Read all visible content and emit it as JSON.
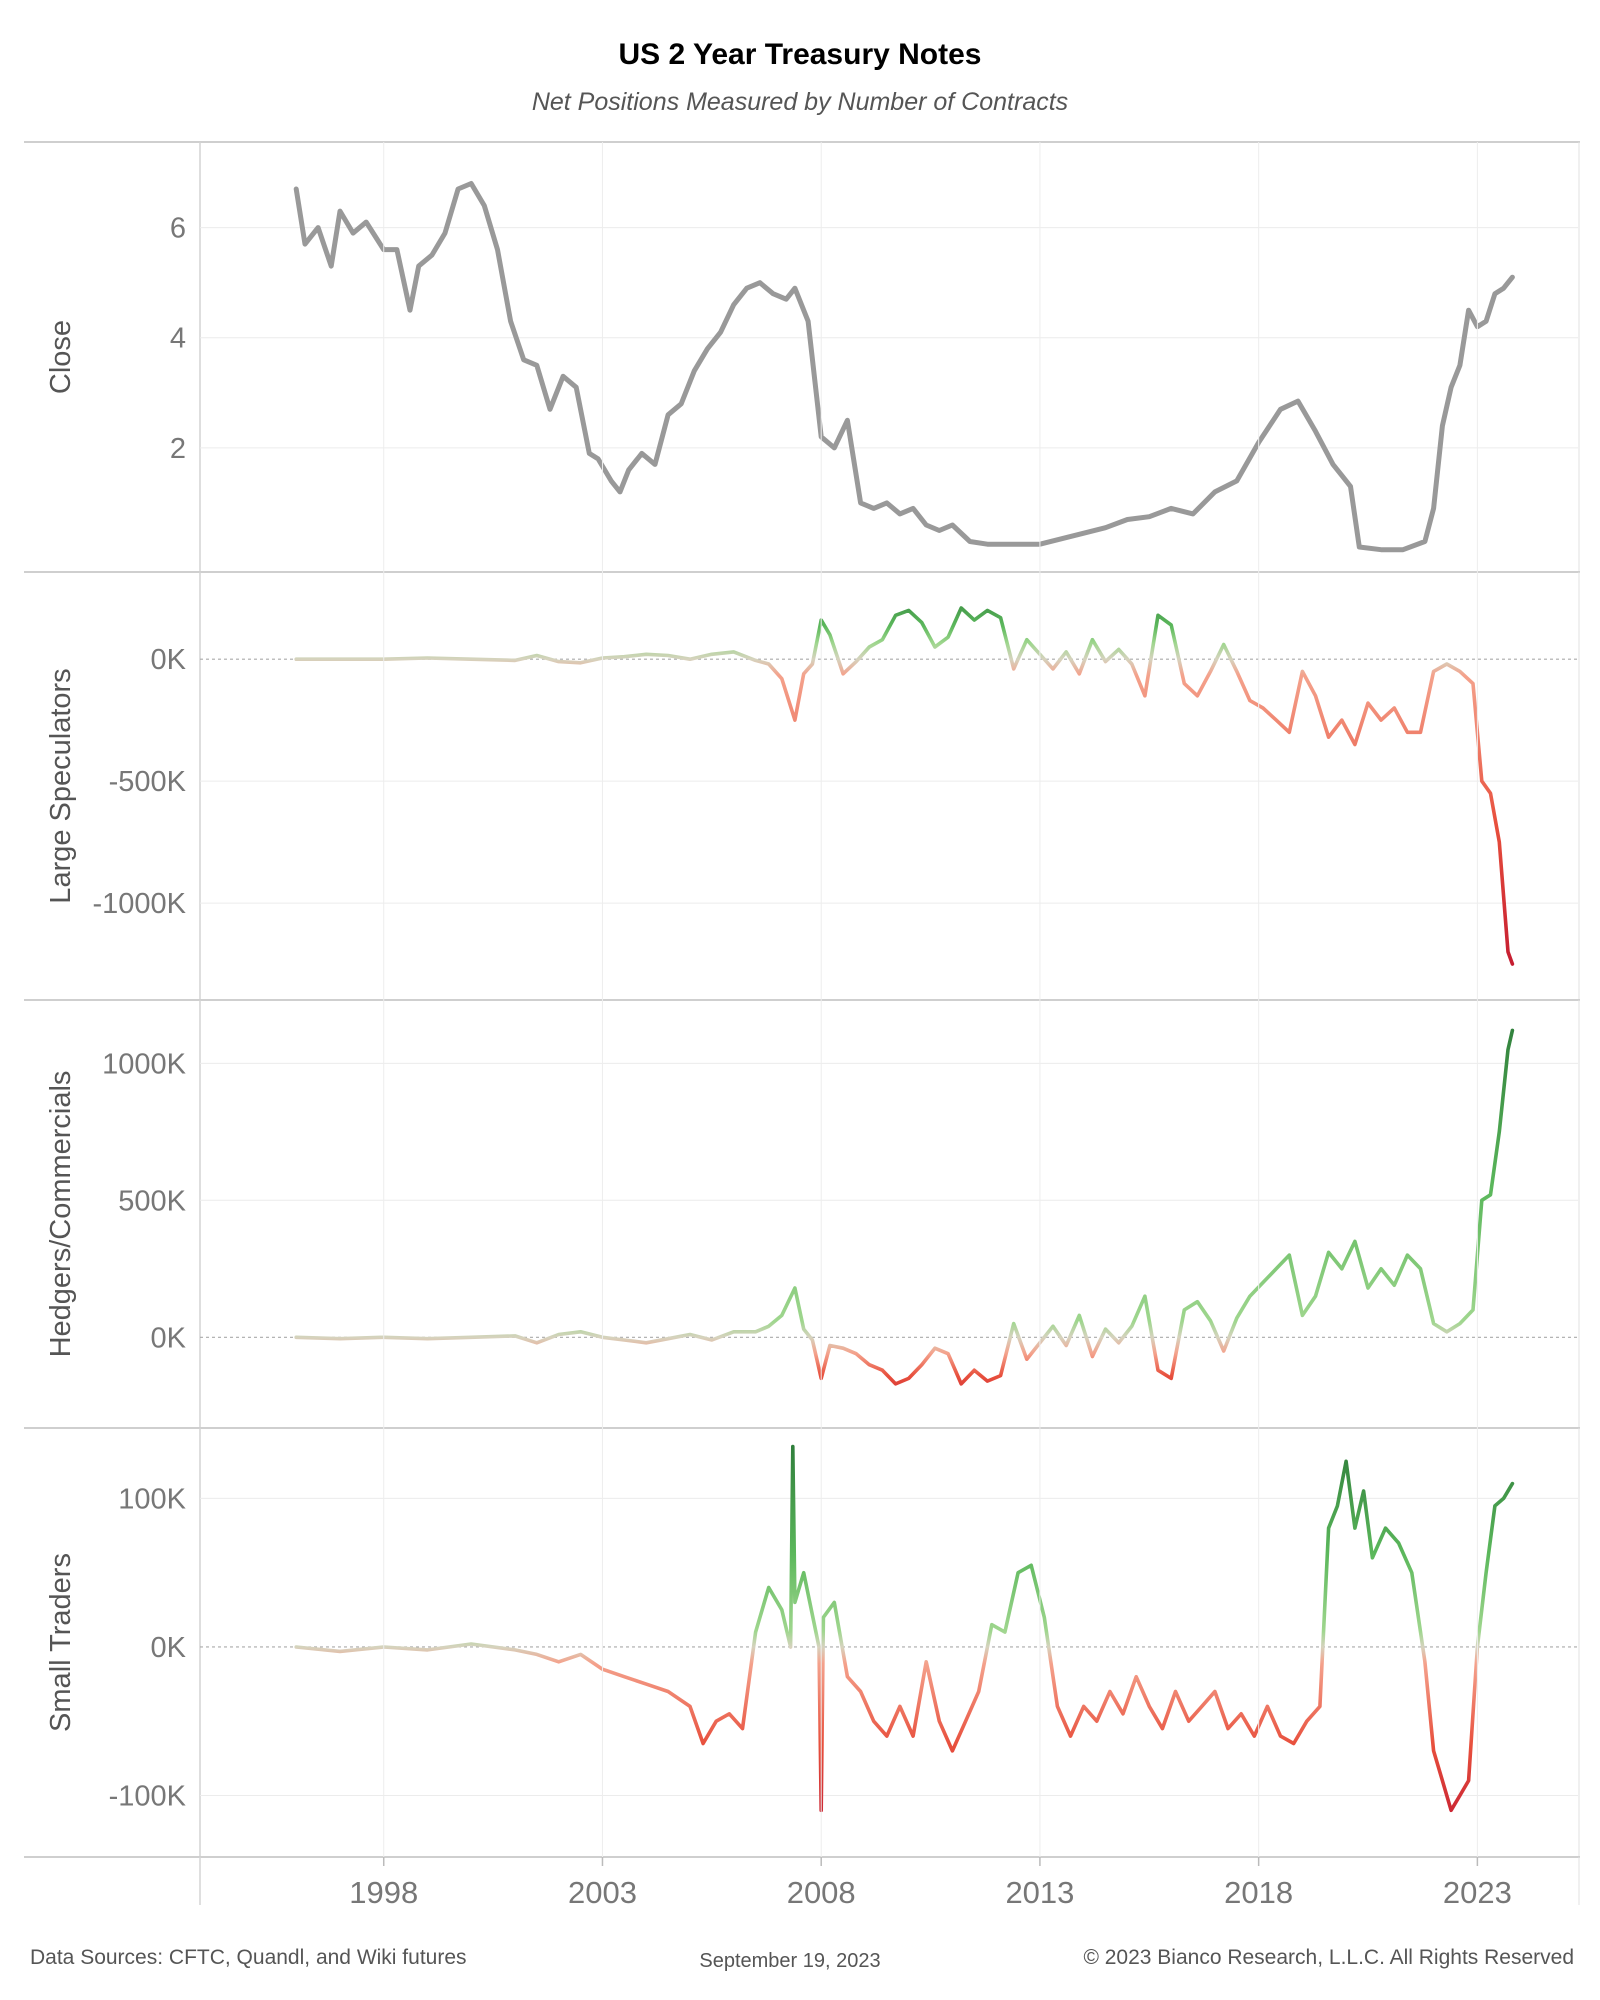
{
  "title": "US 2 Year Treasury Notes",
  "subtitle": "Net Positions Measured by Number of Contracts",
  "footer": {
    "sources": "Data Sources: CFTC, Quandl, and Wiki futures",
    "date": "September 19, 2023",
    "copyright": "© 2023 Bianco Research, L.L.C. All Rights Reserved"
  },
  "colors": {
    "close_line": "#999999",
    "positive_dark": "#2e7d3a",
    "positive_light": "#9fd68e",
    "neutral": "#d6d3be",
    "negative_light": "#f4a28c",
    "negative_dark": "#c0152f",
    "grid": "#ececec",
    "zero_line": "#aaaaaa",
    "axis_text": "#777777"
  },
  "chart_data": {
    "type": "line",
    "x_axis": {
      "label": "",
      "ticks": [
        "1998",
        "2003",
        "2008",
        "2013",
        "2018",
        "2023"
      ],
      "range": [
        1993.8,
        2025.3
      ]
    },
    "panels": [
      {
        "ylabel": "Close",
        "ylim": [
          0,
          7.3
        ],
        "ticks": [
          {
            "v": 2,
            "t": "2"
          },
          {
            "v": 4,
            "t": "4"
          },
          {
            "v": 6,
            "t": "6"
          }
        ],
        "color_mode": "gray",
        "x": [
          1996.0,
          1996.2,
          1996.5,
          1996.8,
          1997.0,
          1997.3,
          1997.6,
          1998.0,
          1998.3,
          1998.6,
          1998.8,
          1999.1,
          1999.4,
          1999.7,
          2000.0,
          2000.3,
          2000.6,
          2000.9,
          2001.2,
          2001.5,
          2001.8,
          2002.1,
          2002.4,
          2002.7,
          2002.9,
          2003.2,
          2003.4,
          2003.6,
          2003.9,
          2004.2,
          2004.5,
          2004.8,
          2005.1,
          2005.4,
          2005.7,
          2006.0,
          2006.3,
          2006.6,
          2006.9,
          2007.2,
          2007.4,
          2007.7,
          2008.0,
          2008.3,
          2008.6,
          2008.9,
          2009.2,
          2009.5,
          2009.8,
          2010.1,
          2010.4,
          2010.7,
          2011.0,
          2011.4,
          2011.8,
          2012.2,
          2012.6,
          2013.0,
          2013.5,
          2014.0,
          2014.5,
          2015.0,
          2015.5,
          2016.0,
          2016.5,
          2017.0,
          2017.5,
          2018.0,
          2018.5,
          2018.9,
          2019.3,
          2019.7,
          2019.9,
          2020.1,
          2020.3,
          2020.8,
          2021.3,
          2021.8,
          2022.0,
          2022.2,
          2022.4,
          2022.6,
          2022.8,
          2023.0,
          2023.2,
          2023.4,
          2023.6,
          2023.8
        ],
        "y": [
          6.7,
          5.7,
          6.0,
          5.3,
          6.3,
          5.9,
          6.1,
          5.6,
          5.6,
          4.5,
          5.3,
          5.5,
          5.9,
          6.7,
          6.8,
          6.4,
          5.6,
          4.3,
          3.6,
          3.5,
          2.7,
          3.3,
          3.1,
          1.9,
          1.8,
          1.4,
          1.2,
          1.6,
          1.9,
          1.7,
          2.6,
          2.8,
          3.4,
          3.8,
          4.1,
          4.6,
          4.9,
          5.0,
          4.8,
          4.7,
          4.9,
          4.3,
          2.2,
          2.0,
          2.5,
          1.0,
          0.9,
          1.0,
          0.8,
          0.9,
          0.6,
          0.5,
          0.6,
          0.3,
          0.25,
          0.25,
          0.25,
          0.25,
          0.35,
          0.45,
          0.55,
          0.7,
          0.75,
          0.9,
          0.8,
          1.2,
          1.4,
          2.1,
          2.7,
          2.85,
          2.3,
          1.7,
          1.5,
          1.3,
          0.2,
          0.15,
          0.15,
          0.3,
          0.9,
          2.4,
          3.1,
          3.5,
          4.5,
          4.2,
          4.3,
          4.8,
          4.9,
          5.1
        ]
      },
      {
        "ylabel": "Large Speculators",
        "ylim": [
          -1340,
          300
        ],
        "ticks": [
          {
            "v": 0,
            "t": "0K"
          },
          {
            "v": -500,
            "t": "-500K"
          },
          {
            "v": -1000,
            "t": "-1000K"
          }
        ],
        "color_mode": "diverging",
        "x": [
          1996.0,
          1997.0,
          1998.0,
          1999.0,
          2000.0,
          2001.0,
          2001.5,
          2002.0,
          2002.5,
          2003.0,
          2003.5,
          2004.0,
          2004.5,
          2005.0,
          2005.5,
          2006.0,
          2006.5,
          2006.8,
          2007.1,
          2007.4,
          2007.6,
          2007.8,
          2008.0,
          2008.2,
          2008.5,
          2008.8,
          2009.1,
          2009.4,
          2009.7,
          2010.0,
          2010.3,
          2010.6,
          2010.9,
          2011.2,
          2011.5,
          2011.8,
          2012.1,
          2012.4,
          2012.7,
          2013.0,
          2013.3,
          2013.6,
          2013.9,
          2014.2,
          2014.5,
          2014.8,
          2015.1,
          2015.4,
          2015.7,
          2016.0,
          2016.3,
          2016.6,
          2016.9,
          2017.2,
          2017.5,
          2017.8,
          2018.1,
          2018.4,
          2018.7,
          2019.0,
          2019.3,
          2019.6,
          2019.9,
          2020.2,
          2020.5,
          2020.8,
          2021.1,
          2021.4,
          2021.7,
          2022.0,
          2022.3,
          2022.6,
          2022.9,
          2023.1,
          2023.3,
          2023.5,
          2023.7,
          2023.8
        ],
        "y": [
          0,
          0,
          0,
          5,
          0,
          -5,
          15,
          -10,
          -15,
          5,
          10,
          20,
          15,
          0,
          20,
          30,
          -5,
          -20,
          -80,
          -250,
          -60,
          -20,
          160,
          100,
          -60,
          -10,
          50,
          80,
          180,
          200,
          150,
          50,
          90,
          210,
          160,
          200,
          170,
          -40,
          80,
          20,
          -40,
          30,
          -60,
          80,
          -10,
          40,
          -20,
          -150,
          180,
          140,
          -100,
          -150,
          -50,
          60,
          -50,
          -170,
          -200,
          -250,
          -300,
          -50,
          -150,
          -320,
          -250,
          -350,
          -180,
          -250,
          -200,
          -300,
          -300,
          -50,
          -20,
          -50,
          -100,
          -500,
          -550,
          -750,
          -1200,
          -1250
        ]
      },
      {
        "ylabel": "Hedgers/Commercials",
        "ylim": [
          -280,
          1180
        ],
        "ticks": [
          {
            "v": 0,
            "t": "0K"
          },
          {
            "v": 500,
            "t": "500K"
          },
          {
            "v": 1000,
            "t": "1000K"
          }
        ],
        "color_mode": "diverging",
        "x": [
          1996.0,
          1997.0,
          1998.0,
          1999.0,
          2000.0,
          2001.0,
          2001.5,
          2002.0,
          2002.5,
          2003.0,
          2003.5,
          2004.0,
          2004.5,
          2005.0,
          2005.5,
          2006.0,
          2006.5,
          2006.8,
          2007.1,
          2007.4,
          2007.6,
          2007.8,
          2008.0,
          2008.2,
          2008.5,
          2008.8,
          2009.1,
          2009.4,
          2009.7,
          2010.0,
          2010.3,
          2010.6,
          2010.9,
          2011.2,
          2011.5,
          2011.8,
          2012.1,
          2012.4,
          2012.7,
          2013.0,
          2013.3,
          2013.6,
          2013.9,
          2014.2,
          2014.5,
          2014.8,
          2015.1,
          2015.4,
          2015.7,
          2016.0,
          2016.3,
          2016.6,
          2016.9,
          2017.2,
          2017.5,
          2017.8,
          2018.1,
          2018.4,
          2018.7,
          2019.0,
          2019.3,
          2019.6,
          2019.9,
          2020.2,
          2020.5,
          2020.8,
          2021.1,
          2021.4,
          2021.7,
          2022.0,
          2022.3,
          2022.6,
          2022.9,
          2023.1,
          2023.3,
          2023.5,
          2023.7,
          2023.8
        ],
        "y": [
          0,
          -5,
          0,
          -5,
          0,
          5,
          -20,
          10,
          20,
          0,
          -10,
          -20,
          -5,
          10,
          -10,
          20,
          20,
          40,
          80,
          180,
          30,
          -10,
          -150,
          -30,
          -40,
          -60,
          -100,
          -120,
          -170,
          -150,
          -100,
          -40,
          -60,
          -170,
          -120,
          -160,
          -140,
          50,
          -80,
          -20,
          40,
          -30,
          80,
          -70,
          30,
          -20,
          40,
          150,
          -120,
          -150,
          100,
          130,
          60,
          -50,
          70,
          150,
          200,
          250,
          300,
          80,
          150,
          310,
          250,
          350,
          180,
          250,
          190,
          300,
          250,
          50,
          20,
          50,
          100,
          500,
          520,
          750,
          1050,
          1120
        ]
      },
      {
        "ylabel": "Small Traders",
        "ylim": [
          -132,
          138
        ],
        "ticks": [
          {
            "v": 0,
            "t": "0K"
          },
          {
            "v": 100,
            "t": "100K"
          },
          {
            "v": -100,
            "t": "-100K"
          }
        ],
        "color_mode": "diverging",
        "x": [
          1996.0,
          1997.0,
          1998.0,
          1999.0,
          2000.0,
          2001.0,
          2001.5,
          2002.0,
          2002.5,
          2003.0,
          2003.5,
          2004.0,
          2004.5,
          2005.0,
          2005.3,
          2005.6,
          2005.9,
          2006.2,
          2006.5,
          2006.8,
          2007.1,
          2007.3,
          2007.35,
          2007.4,
          2007.6,
          2007.95,
          2008.0,
          2008.05,
          2008.3,
          2008.6,
          2008.9,
          2009.2,
          2009.5,
          2009.8,
          2010.1,
          2010.4,
          2010.7,
          2011.0,
          2011.3,
          2011.6,
          2011.9,
          2012.2,
          2012.5,
          2012.8,
          2013.1,
          2013.4,
          2013.7,
          2014.0,
          2014.3,
          2014.6,
          2014.9,
          2015.2,
          2015.5,
          2015.8,
          2016.1,
          2016.4,
          2016.7,
          2017.0,
          2017.3,
          2017.6,
          2017.9,
          2018.2,
          2018.5,
          2018.8,
          2019.1,
          2019.4,
          2019.6,
          2019.8,
          2020.0,
          2020.2,
          2020.4,
          2020.6,
          2020.9,
          2021.2,
          2021.5,
          2021.8,
          2022.0,
          2022.2,
          2022.4,
          2022.6,
          2022.8,
          2023.0,
          2023.2,
          2023.4,
          2023.6,
          2023.8
        ],
        "y": [
          0,
          -3,
          0,
          -2,
          2,
          -2,
          -5,
          -10,
          -5,
          -15,
          -20,
          -25,
          -30,
          -40,
          -65,
          -50,
          -45,
          -55,
          10,
          40,
          25,
          0,
          135,
          30,
          50,
          0,
          -110,
          20,
          30,
          -20,
          -30,
          -50,
          -60,
          -40,
          -60,
          -10,
          -50,
          -70,
          -50,
          -30,
          15,
          10,
          50,
          55,
          20,
          -40,
          -60,
          -40,
          -50,
          -30,
          -45,
          -20,
          -40,
          -55,
          -30,
          -50,
          -40,
          -30,
          -55,
          -45,
          -60,
          -40,
          -60,
          -65,
          -50,
          -40,
          80,
          95,
          125,
          80,
          105,
          60,
          80,
          70,
          50,
          -10,
          -70,
          -90,
          -110,
          -100,
          -90,
          0,
          50,
          95,
          100,
          110
        ]
      }
    ]
  }
}
